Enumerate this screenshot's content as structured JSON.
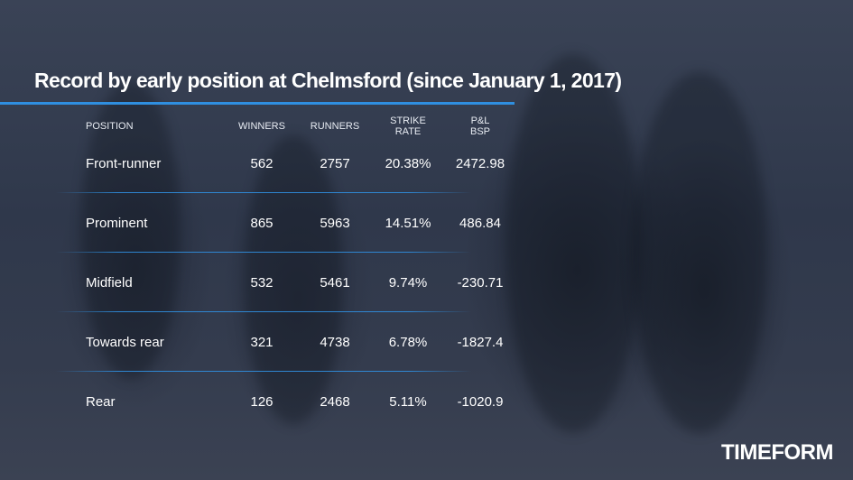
{
  "title": "Record by early position at Chelmsford (since January 1, 2017)",
  "columns": {
    "position": "POSITION",
    "winners": "WINNERS",
    "runners": "RUNNERS",
    "strike_rate": "STRIKE\nRATE",
    "pl_bsp": "P&L\nBSP"
  },
  "rows": [
    {
      "position": "Front-runner",
      "winners": "562",
      "runners": "2757",
      "strike_rate": "20.38%",
      "pl_bsp": "2472.98"
    },
    {
      "position": "Prominent",
      "winners": "865",
      "runners": "5963",
      "strike_rate": "14.51%",
      "pl_bsp": "486.84"
    },
    {
      "position": "Midfield",
      "winners": "532",
      "runners": "5461",
      "strike_rate": "9.74%",
      "pl_bsp": "-230.71"
    },
    {
      "position": "Towards rear",
      "winners": "321",
      "runners": "4738",
      "strike_rate": "6.78%",
      "pl_bsp": "-1827.4"
    },
    {
      "position": "Rear",
      "winners": "126",
      "runners": "2468",
      "strike_rate": "5.11%",
      "pl_bsp": "-1020.9"
    }
  ],
  "logo": "TIMEFORM",
  "colors": {
    "accent": "#2f8fe0",
    "background": "#2f384b",
    "text": "#ffffff"
  }
}
